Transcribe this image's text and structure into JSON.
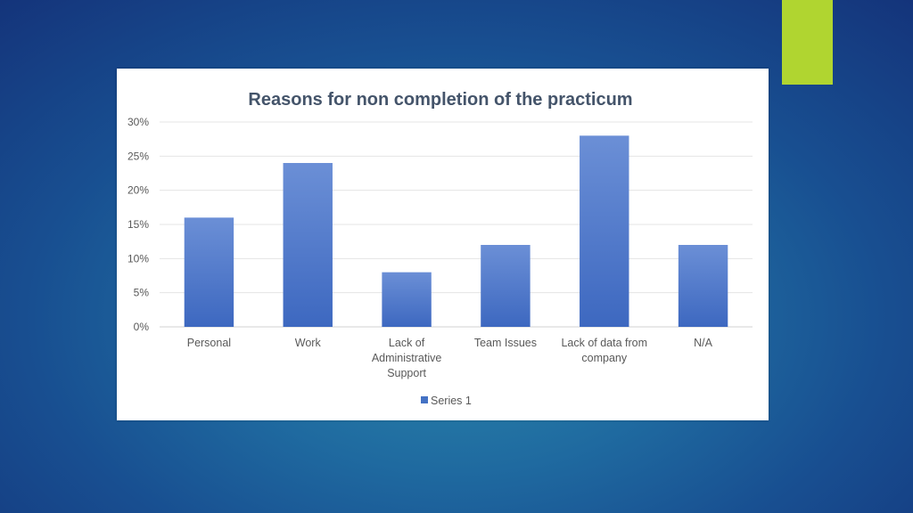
{
  "slide": {
    "accent_color": "#b0d530"
  },
  "chart_data": {
    "type": "bar",
    "title": "Reasons for non completion of the practicum",
    "categories": [
      [
        "Personal"
      ],
      [
        "Work"
      ],
      [
        "Lack of",
        "Administrative",
        "Support"
      ],
      [
        "Team Issues"
      ],
      [
        "Lack of data from",
        "company"
      ],
      [
        "N/A"
      ]
    ],
    "series": [
      {
        "name": "Series 1",
        "values": [
          0.16,
          0.24,
          0.08,
          0.12,
          0.28,
          0.12
        ],
        "color": "#4472c4"
      }
    ],
    "ylim": [
      0,
      0.3
    ],
    "yticks": [
      {
        "value": 0.0,
        "label": "0%"
      },
      {
        "value": 0.05,
        "label": "5%"
      },
      {
        "value": 0.1,
        "label": "10%"
      },
      {
        "value": 0.15,
        "label": "15%"
      },
      {
        "value": 0.2,
        "label": "20%"
      },
      {
        "value": 0.25,
        "label": "25%"
      },
      {
        "value": 0.3,
        "label": "30%"
      }
    ],
    "grid": true,
    "legend_position": "bottom"
  }
}
